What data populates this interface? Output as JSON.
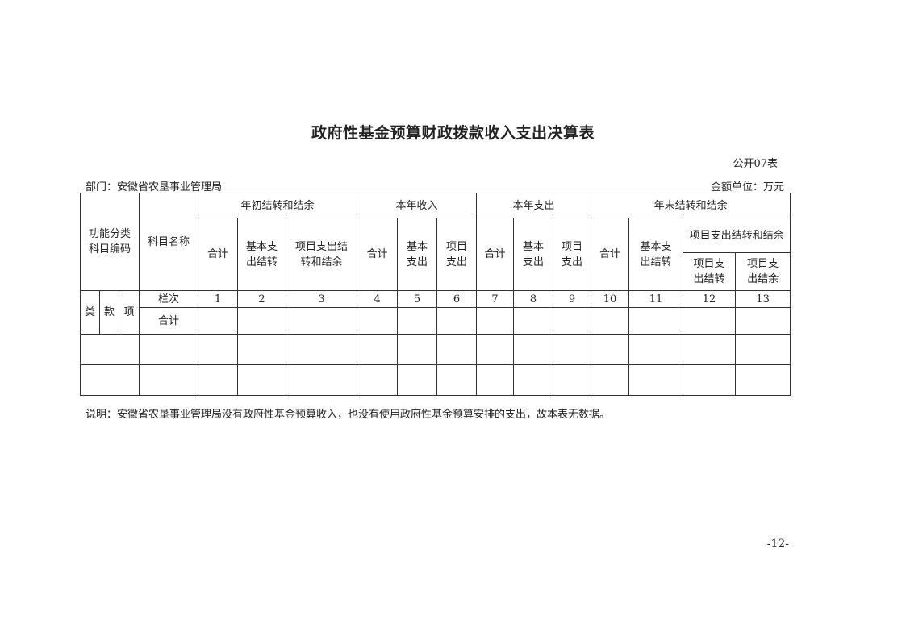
{
  "title": "政府性基金预算财政拨款收入支出决算表",
  "form_no": "公开07表",
  "department": "部门：安徽省农垦事业管理局",
  "unit": "金额单位：万元",
  "table": {
    "code_header": "功能分类科目编码",
    "name_header": "科目名称",
    "groups": [
      "年初结转和结余",
      "本年收入",
      "本年支出",
      "年末结转和结余"
    ],
    "sub_headers": [
      "合计",
      "基本支出结转",
      "项目支出结转和结余",
      "合计",
      "基本支出",
      "项目支出",
      "合计",
      "基本支出",
      "项目支出",
      "合计",
      "基本支出结转",
      "项目支出结转和结余"
    ],
    "sub_sub_headers": [
      "项目支出结转",
      "项目支出结余"
    ],
    "code_parts": [
      "类",
      "款",
      "项"
    ],
    "column_row_label": "栏次",
    "column_numbers": [
      "1",
      "2",
      "3",
      "4",
      "5",
      "6",
      "7",
      "8",
      "9",
      "10",
      "11",
      "12",
      "13"
    ],
    "total_label": "合计"
  },
  "note": "说明：安徽省农垦事业管理局没有政府性基金预算收入，也没有使用政府性基金预算安排的支出，故本表无数据。",
  "page_number": "-12-"
}
